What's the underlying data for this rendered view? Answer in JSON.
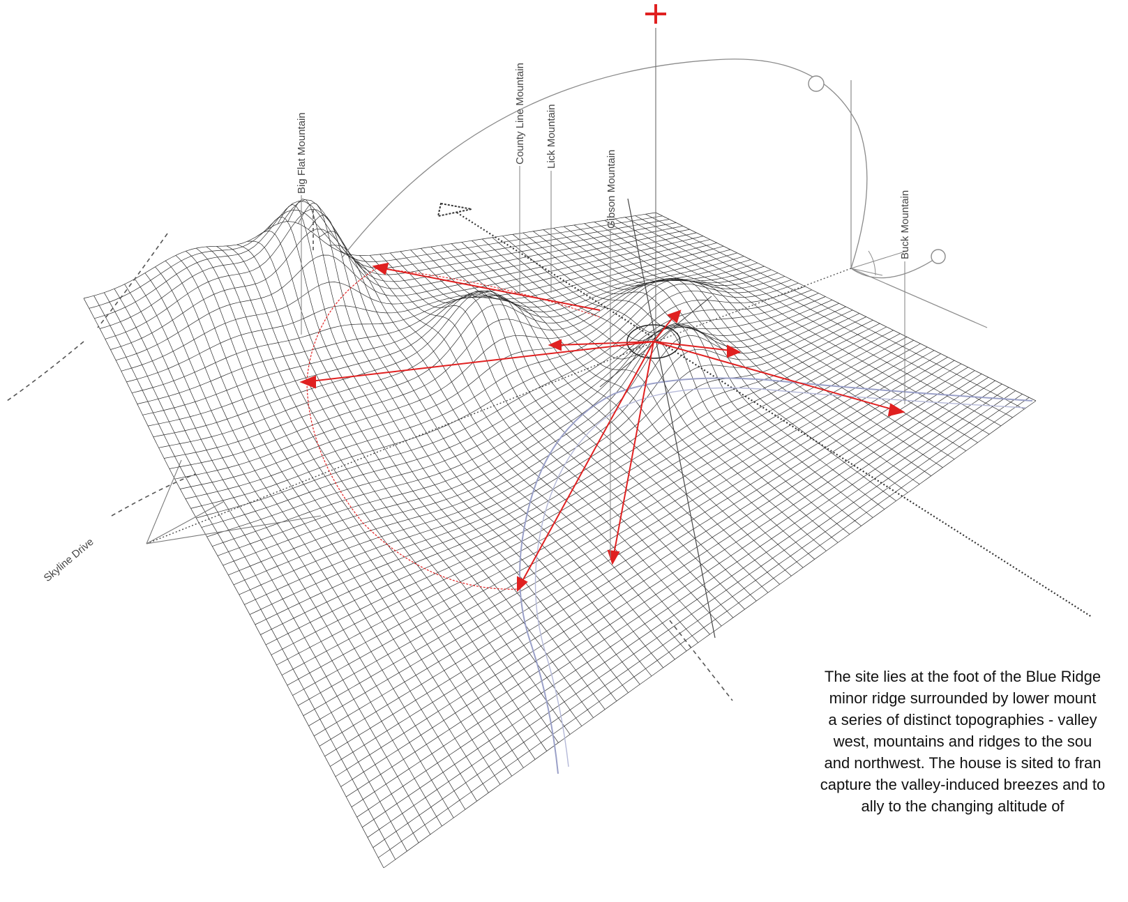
{
  "labels": {
    "big_flat": "Big Flat Mountain",
    "county_line": "County Line Mountain",
    "lick": "Lick Mountain",
    "gibson": "Gibson Mountain",
    "buck": "Buck Mountain",
    "skyline": "Skyline Drive"
  },
  "caption_lines": [
    "The site lies at the foot of the Blue Ridge",
    "minor ridge surrounded by lower mount",
    "a series of distinct topographies - valley",
    "west, mountains and ridges to the sou",
    "and northwest.  The house is sited to fran",
    "capture the valley-induced breezes and to",
    "ally to the changing altitude of"
  ],
  "colors": {
    "mesh": "#2a2a2a",
    "accent": "#e02020",
    "valley": "#9aa0c8",
    "guide": "#888888"
  }
}
